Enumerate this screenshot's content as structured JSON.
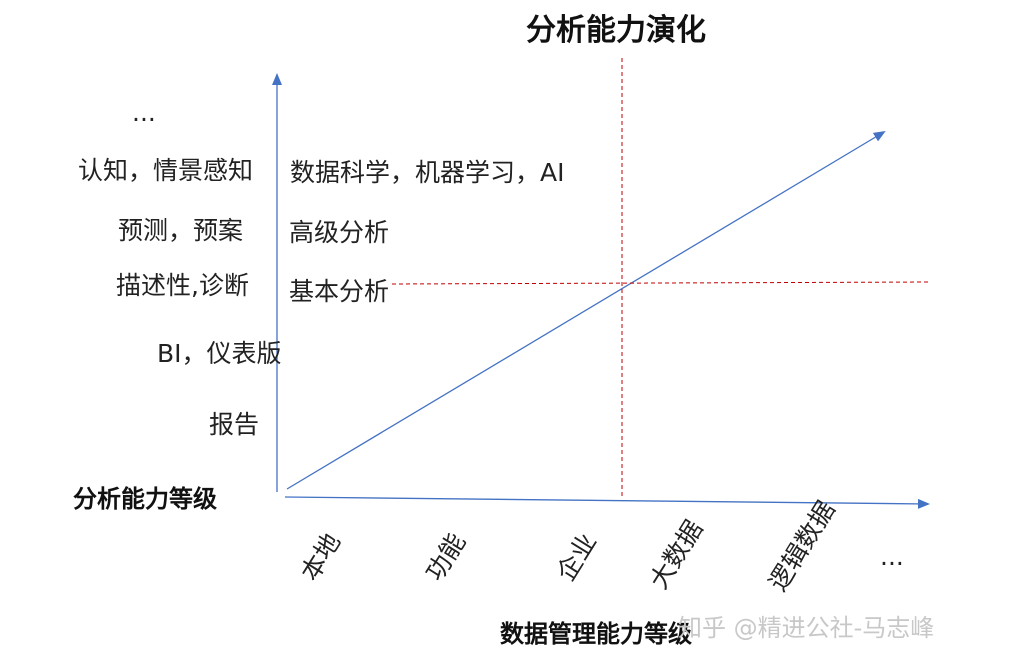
{
  "diagram": {
    "title": "分析能力演化",
    "y_axis_title": "分析能力等级",
    "x_axis_title": "数据管理能力等级",
    "y_levels": [
      "...",
      "认知，情景感知",
      "预测，预案",
      "描述性,诊断",
      "BI，仪表版",
      "报告"
    ],
    "capabilities": [
      "数据科学，机器学习，AI",
      "高级分析",
      "基本分析"
    ],
    "x_ticks": [
      "本地",
      "功能",
      "企业",
      "大数据",
      "逻辑数据",
      "..."
    ],
    "watermark": "知乎 @精进公社-马志峰"
  },
  "colors": {
    "axis": "#4472c4",
    "guide": "#c00000",
    "text": "#222222"
  }
}
